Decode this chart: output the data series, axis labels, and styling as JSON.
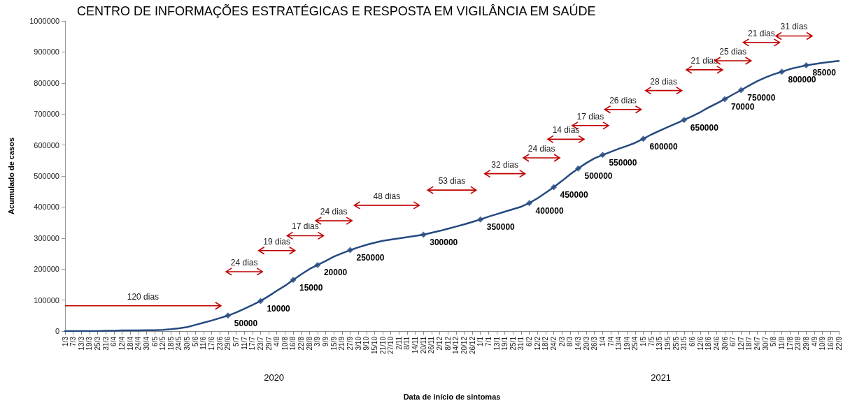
{
  "chart_data": {
    "type": "line",
    "title": "CENTRO DE INFORMAÇÕES ESTRATÉGICAS E RESPOSTA EM VIGILÂNCIA EM SAÚDE",
    "xlabel": "Data de início de sintomas",
    "ylabel": "Acumulado de casos",
    "categories": [
      "1/3",
      "7/3",
      "13/3",
      "19/3",
      "25/3",
      "31/3",
      "6/4",
      "12/4",
      "18/4",
      "24/4",
      "30/4",
      "6/5",
      "12/5",
      "18/5",
      "24/5",
      "30/5",
      "5/6",
      "11/6",
      "17/6",
      "23/6",
      "29/6",
      "5/7",
      "11/7",
      "17/7",
      "23/7",
      "29/7",
      "4/8",
      "10/8",
      "16/8",
      "22/8",
      "28/8",
      "3/9",
      "9/9",
      "15/9",
      "21/9",
      "27/9",
      "3/10",
      "9/10",
      "15/10",
      "21/10",
      "27/10",
      "2/11",
      "8/11",
      "14/11",
      "20/11",
      "26/11",
      "2/12",
      "8/12",
      "14/12",
      "20/12",
      "26/12",
      "1/1",
      "7/1",
      "13/1",
      "19/1",
      "25/1",
      "31/1",
      "6/2",
      "12/2",
      "18/2",
      "24/2",
      "2/3",
      "8/3",
      "14/3",
      "20/3",
      "26/3",
      "1/4",
      "7/4",
      "13/4",
      "19/4",
      "25/4",
      "1/5",
      "7/5",
      "13/5",
      "19/5",
      "25/5",
      "31/5",
      "6/6",
      "12/6",
      "18/6",
      "24/6",
      "30/6",
      "6/7",
      "12/7",
      "18/7",
      "24/7",
      "30/7",
      "5/8",
      "11/8",
      "17/8",
      "23/8",
      "29/8",
      "4/9",
      "10/9",
      "16/9",
      "22/9"
    ],
    "series": [
      {
        "color": "#254a80",
        "marker": "none",
        "values": [
          0,
          0,
          0,
          0,
          0,
          1000,
          1000,
          2000,
          2000,
          2000,
          3000,
          3000,
          4000,
          6000,
          9000,
          13000,
          20000,
          27000,
          34000,
          42000,
          50000,
          60000,
          72000,
          84000,
          97000,
          113000,
          130000,
          146000,
          165000,
          183000,
          200000,
          213000,
          226000,
          240000,
          251000,
          261000,
          270000,
          278000,
          285000,
          291000,
          295000,
          299000,
          303000,
          307000,
          311000,
          317000,
          323000,
          330000,
          337000,
          344000,
          352000,
          360000,
          369000,
          377000,
          385000,
          393000,
          401000,
          413000,
          428000,
          446000,
          464000,
          484000,
          505000,
          524000,
          542000,
          557000,
          568000,
          578000,
          588000,
          597000,
          607000,
          620000,
          634000,
          646000,
          658000,
          669000,
          681000,
          693000,
          706000,
          721000,
          734000,
          748000,
          763000,
          777000,
          792000,
          806000,
          818000,
          828000,
          836000,
          845000,
          851000,
          857000,
          861000,
          865000,
          868000,
          871000
        ]
      },
      {
        "type": "scatter",
        "color": "#254a80",
        "marker": "diamond",
        "x": [
          "29/6",
          "23/7",
          "16/8",
          "3/9",
          "27/9",
          "20/11",
          "1/1",
          "6/2",
          "24/2",
          "14/3",
          "1/4",
          "1/5",
          "31/5",
          "30/6",
          "12/7",
          "11/8",
          "29/8"
        ],
        "values": [
          50000,
          97000,
          165000,
          213000,
          261000,
          311000,
          360000,
          413000,
          464000,
          524000,
          568000,
          620000,
          681000,
          748000,
          777000,
          836000,
          857000
        ]
      }
    ],
    "ylim": [
      0,
      1000000
    ],
    "yticks": [
      0,
      100000,
      200000,
      300000,
      400000,
      500000,
      600000,
      700000,
      800000,
      900000,
      1000000
    ],
    "grid": false,
    "line_style": "solid",
    "annotations": [
      {
        "text": "50000",
        "x": "29/6",
        "y": 50000
      },
      {
        "text": "10000",
        "x": "23/7",
        "y": 97000
      },
      {
        "text": "15000",
        "x": "16/8",
        "y": 165000
      },
      {
        "text": "20000",
        "x": "3/9",
        "y": 213000
      },
      {
        "text": "250000",
        "x": "27/9",
        "y": 261000
      },
      {
        "text": "300000",
        "x": "20/11",
        "y": 311000
      },
      {
        "text": "350000",
        "x": "1/1",
        "y": 360000
      },
      {
        "text": "400000",
        "x": "6/2",
        "y": 413000
      },
      {
        "text": "450000",
        "x": "24/2",
        "y": 464000
      },
      {
        "text": "500000",
        "x": "14/3",
        "y": 524000
      },
      {
        "text": "550000",
        "x": "1/4",
        "y": 568000
      },
      {
        "text": "600000",
        "x": "1/5",
        "y": 620000
      },
      {
        "text": "650000",
        "x": "31/5",
        "y": 681000
      },
      {
        "text": "70000",
        "x": "30/6",
        "y": 748000
      },
      {
        "text": "750000",
        "x": "12/7",
        "y": 777000
      },
      {
        "text": "800000",
        "x": "11/8",
        "y": 836000
      },
      {
        "text": "85000",
        "x": "29/8",
        "y": 857000
      },
      "120 dias",
      "24 dias",
      "19 dias",
      "17 dias",
      "24 dias",
      "48 dias",
      "53 dias",
      "32 dias",
      "24 dias",
      "14 dias",
      "17 dias",
      "26 dias",
      "28 dias",
      "21 dias",
      "25 dias",
      "21 dias",
      "31 dias",
      "2020",
      "2021"
    ]
  }
}
